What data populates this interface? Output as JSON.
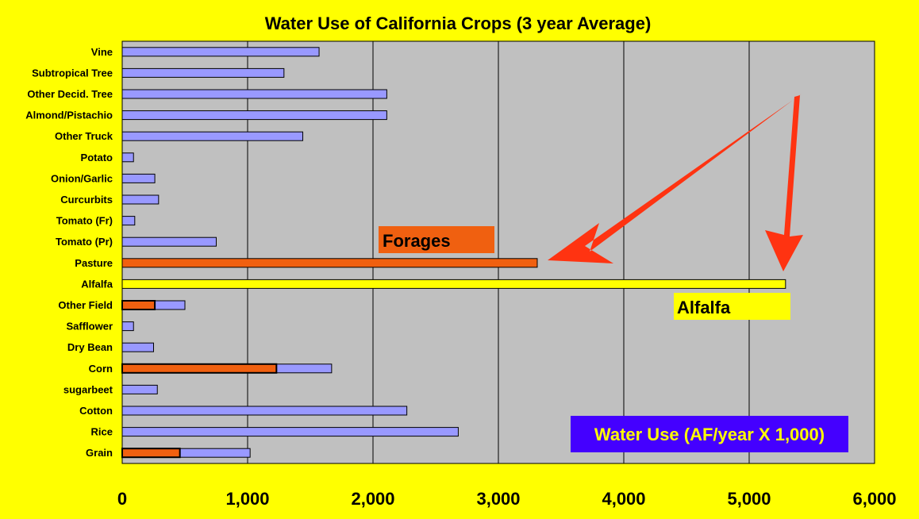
{
  "chart_data": {
    "type": "bar",
    "orientation": "horizontal",
    "title": "Water Use of California Crops (3 year Average)",
    "categories": [
      "Vine",
      "Subtropical Tree",
      "Other Decid. Tree",
      "Almond/Pistachio",
      "Other Truck",
      "Potato",
      "Onion/Garlic",
      "Curcurbits",
      "Tomato (Fr)",
      "Tomato (Pr)",
      "Pasture",
      "Alfalfa",
      "Other Field",
      "Safflower",
      "Dry Bean",
      "Corn",
      "sugarbeet",
      "Cotton",
      "Rice",
      "Grain"
    ],
    "values": [
      1570,
      1290,
      2110,
      2110,
      1440,
      90,
      260,
      290,
      100,
      750,
      3310,
      5290,
      500,
      90,
      250,
      1670,
      280,
      2270,
      2680,
      1020
    ],
    "bar_colors": [
      "#9999FF",
      "#9999FF",
      "#9999FF",
      "#9999FF",
      "#9999FF",
      "#9999FF",
      "#9999FF",
      "#9999FF",
      "#9999FF",
      "#9999FF",
      "#F06010",
      "#FFFF00",
      "#9999FF",
      "#9999FF",
      "#9999FF",
      "#9999FF",
      "#9999FF",
      "#9999FF",
      "#9999FF",
      "#9999FF"
    ],
    "forage_overlay": [
      {
        "category": "Other Field",
        "value": 260
      },
      {
        "category": "Corn",
        "value": 1230
      },
      {
        "category": "Grain",
        "value": 460
      }
    ],
    "xlim": [
      0,
      6000
    ],
    "xticks": [
      0,
      1000,
      2000,
      3000,
      4000,
      5000,
      6000
    ],
    "xtick_labels": [
      "0",
      "1,000",
      "2,000",
      "3,000",
      "4,000",
      "5,000",
      "6,000"
    ],
    "grid": "vertical",
    "annotations": {
      "forages_label": "Forages",
      "alfalfa_label": "Alfalfa",
      "units_label": "Water Use (AF/year X 1,000)"
    },
    "colors": {
      "background": "#FFFF00",
      "plot_area": "#C0C0C0",
      "default_bar": "#9999FF",
      "forage_bar": "#F06010",
      "alfalfa_bar": "#FFFF00",
      "arrow": "#FF3311",
      "units_box": "#4400FF",
      "units_text": "#FFFF00"
    }
  }
}
